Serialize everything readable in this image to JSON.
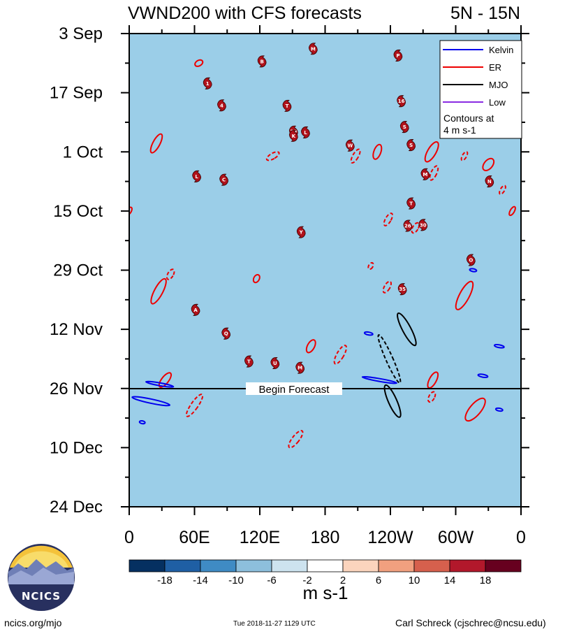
{
  "chart_data": {
    "type": "heatmap",
    "title": "VWND200 with CFS forecasts",
    "region": "5N - 15N",
    "y_ticks": [
      "3 Sep",
      "17 Sep",
      "1 Oct",
      "15 Oct",
      "29 Oct",
      "12 Nov",
      "26 Nov",
      "10 Dec",
      "24 Dec"
    ],
    "x_ticks": [
      "0",
      "60E",
      "120E",
      "180",
      "120W",
      "60W",
      "0"
    ],
    "xlim": [
      0,
      360
    ],
    "ylim_days": [
      0,
      112
    ],
    "forecast_start_day": 84,
    "forecast_label": "Begin Forecast",
    "colorbar_ticks": [
      "-18",
      "-14",
      "-10",
      "-6",
      "-2",
      "2",
      "6",
      "10",
      "14",
      "18"
    ],
    "colorbar_colors": [
      "#053061",
      "#1f5fa4",
      "#3f8bc4",
      "#8dbfdc",
      "#cde3ef",
      "#ffffff",
      "#fbd4bd",
      "#f1a07f",
      "#d6604d",
      "#b2182b",
      "#67001f"
    ],
    "units": "m s-1",
    "legend": [
      {
        "label": "Kelvin",
        "color": "#0000ee"
      },
      {
        "label": "ER",
        "color": "#ee0000"
      },
      {
        "label": "MJO",
        "color": "#000000"
      },
      {
        "label": "Low",
        "color": "#8a2be2"
      }
    ],
    "contour_note_line1": "Contours at",
    "contour_note_line2": "4 m s-1",
    "storms": [
      {
        "label": "M",
        "lon": 169,
        "day": 3.6
      },
      {
        "label": "P",
        "lon": 247,
        "day": 5.2
      },
      {
        "label": "B",
        "lon": 122,
        "day": 6.6
      },
      {
        "label": "1",
        "lon": 72,
        "day": 11.8
      },
      {
        "label": "16",
        "lon": 250,
        "day": 16.0
      },
      {
        "label": "4",
        "lon": 85,
        "day": 17.0
      },
      {
        "label": "T",
        "lon": 145,
        "day": 17.1
      },
      {
        "label": "S",
        "lon": 253,
        "day": 22.1
      },
      {
        "label": "29",
        "lon": 151,
        "day": 23.2
      },
      {
        "label": "L",
        "lon": 162,
        "day": 23.4
      },
      {
        "label": "K",
        "lon": 151,
        "day": 24.2
      },
      {
        "label": "S",
        "lon": 259,
        "day": 26.4
      },
      {
        "label": "W",
        "lon": 203,
        "day": 26.5
      },
      {
        "label": "M",
        "lon": 272,
        "day": 33.3
      },
      {
        "label": "L",
        "lon": 62,
        "day": 33.8
      },
      {
        "label": "C",
        "lon": 87,
        "day": 34.6
      },
      {
        "label": "N",
        "lon": 331,
        "day": 35.0
      },
      {
        "label": "T",
        "lon": 259,
        "day": 40.2
      },
      {
        "label": "26",
        "lon": 256,
        "day": 45.5
      },
      {
        "label": "30",
        "lon": 270,
        "day": 45.3
      },
      {
        "label": "Y",
        "lon": 158,
        "day": 47.0
      },
      {
        "label": "O",
        "lon": 314,
        "day": 53.6
      },
      {
        "label": "35",
        "lon": 251,
        "day": 60.5
      },
      {
        "label": "A",
        "lon": 61,
        "day": 65.4
      },
      {
        "label": "Q",
        "lon": 89,
        "day": 71.0
      },
      {
        "label": "T",
        "lon": 110,
        "day": 77.6
      },
      {
        "label": "U",
        "lon": 134,
        "day": 78.0
      },
      {
        "label": "M",
        "lon": 157,
        "day": 79.1
      }
    ]
  },
  "footer": {
    "logo_text": "NCICS",
    "url": "ncics.org/mjo",
    "timestamp": "Tue 2018-11-27 1129 UTC",
    "author": "Carl Schreck (cjschrec@ncsu.edu)"
  }
}
